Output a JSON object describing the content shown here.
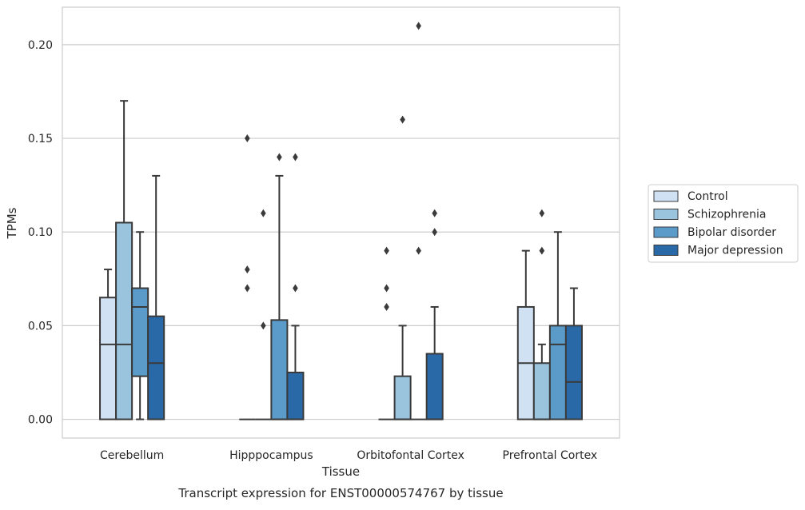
{
  "caption": "Transcript expression for ENST00000574767 by tissue",
  "chart_data": {
    "type": "box",
    "xlabel": "Tissue",
    "ylabel": "TPMs",
    "ylim": [
      -0.01,
      0.22
    ],
    "yticks": [
      0.0,
      0.05,
      0.1,
      0.15,
      0.2
    ],
    "ytick_labels": [
      "0.00",
      "0.05",
      "0.10",
      "0.15",
      "0.20"
    ],
    "grid": "horizontal",
    "legend_position": "right",
    "categories": [
      "Cerebellum",
      "Hipppocampus",
      "Orbitofontal Cortex",
      "Prefrontal Cortex"
    ],
    "series": [
      {
        "name": "Control",
        "color": "#cfe1f2",
        "boxes": [
          {
            "q1": 0.0,
            "median": 0.04,
            "q3": 0.065,
            "whisker_low": 0.0,
            "whisker_high": 0.08,
            "outliers": []
          },
          {
            "q1": 0.0,
            "median": 0.0,
            "q3": 0.0,
            "whisker_low": 0.0,
            "whisker_high": 0.0,
            "outliers": [
              0.07,
              0.08,
              0.15
            ]
          },
          {
            "q1": 0.0,
            "median": 0.0,
            "q3": 0.0,
            "whisker_low": 0.0,
            "whisker_high": 0.0,
            "outliers": [
              0.06,
              0.07,
              0.09
            ]
          },
          {
            "q1": 0.0,
            "median": 0.03,
            "q3": 0.06,
            "whisker_low": 0.0,
            "whisker_high": 0.09,
            "outliers": []
          }
        ]
      },
      {
        "name": "Schizophrenia",
        "color": "#9ac3de",
        "boxes": [
          {
            "q1": 0.0,
            "median": 0.04,
            "q3": 0.105,
            "whisker_low": 0.0,
            "whisker_high": 0.17,
            "outliers": []
          },
          {
            "q1": 0.0,
            "median": 0.0,
            "q3": 0.0,
            "whisker_low": 0.0,
            "whisker_high": 0.0,
            "outliers": [
              0.05,
              0.11
            ]
          },
          {
            "q1": 0.0,
            "median": 0.0,
            "q3": 0.023,
            "whisker_low": 0.0,
            "whisker_high": 0.05,
            "outliers": [
              0.16
            ]
          },
          {
            "q1": 0.0,
            "median": 0.0,
            "q3": 0.03,
            "whisker_low": 0.0,
            "whisker_high": 0.04,
            "outliers": [
              0.09,
              0.11
            ]
          }
        ]
      },
      {
        "name": "Bipolar disorder",
        "color": "#5a9bc9",
        "boxes": [
          {
            "q1": 0.023,
            "median": 0.06,
            "q3": 0.07,
            "whisker_low": 0.0,
            "whisker_high": 0.1,
            "outliers": []
          },
          {
            "q1": 0.0,
            "median": 0.0,
            "q3": 0.053,
            "whisker_low": 0.0,
            "whisker_high": 0.13,
            "outliers": [
              0.14
            ]
          },
          {
            "q1": 0.0,
            "median": 0.0,
            "q3": 0.0,
            "whisker_low": 0.0,
            "whisker_high": 0.0,
            "outliers": [
              0.09,
              0.21
            ]
          },
          {
            "q1": 0.0,
            "median": 0.04,
            "q3": 0.05,
            "whisker_low": 0.0,
            "whisker_high": 0.1,
            "outliers": []
          }
        ]
      },
      {
        "name": "Major depression",
        "color": "#2a69a8",
        "boxes": [
          {
            "q1": 0.0,
            "median": 0.03,
            "q3": 0.055,
            "whisker_low": 0.0,
            "whisker_high": 0.13,
            "outliers": []
          },
          {
            "q1": 0.0,
            "median": 0.0,
            "q3": 0.025,
            "whisker_low": 0.0,
            "whisker_high": 0.05,
            "outliers": [
              0.07,
              0.14
            ]
          },
          {
            "q1": 0.0,
            "median": 0.0,
            "q3": 0.035,
            "whisker_low": 0.0,
            "whisker_high": 0.06,
            "outliers": [
              0.1,
              0.11
            ]
          },
          {
            "q1": 0.0,
            "median": 0.02,
            "q3": 0.05,
            "whisker_low": 0.0,
            "whisker_high": 0.07,
            "outliers": []
          }
        ]
      }
    ]
  }
}
